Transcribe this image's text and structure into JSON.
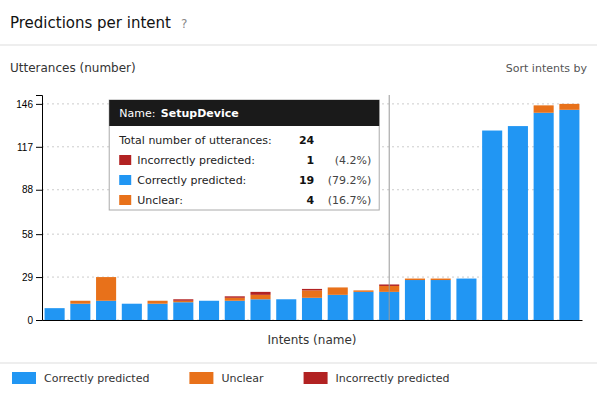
{
  "chart_data": {
    "type": "bar",
    "stacked": true,
    "title": "Predictions per intent",
    "subtitle": "?",
    "ylabel": "Utterances (number)",
    "xlabel": "Intents (name)",
    "categories": [
      null,
      null,
      null,
      null,
      null,
      null,
      null,
      null,
      null,
      null,
      null,
      null,
      null,
      null,
      null,
      null,
      null,
      null,
      null,
      null,
      null
    ],
    "series": [
      {
        "name": "Correctly predicted",
        "color": "#2196F3",
        "values": [
          8,
          11,
          13,
          11,
          11,
          12,
          13,
          13,
          14,
          14,
          15,
          17,
          19,
          19,
          27,
          27,
          28,
          128,
          131,
          140,
          142
        ]
      },
      {
        "name": "Unclear",
        "color": "#E8711A",
        "values": [
          0,
          2,
          16,
          0,
          2,
          1,
          0,
          2,
          3,
          0,
          5,
          5,
          1,
          4,
          1,
          1,
          0,
          0,
          0,
          5,
          4
        ]
      },
      {
        "name": "Incorrectly predicted",
        "color": "#B22222",
        "values": [
          0,
          0,
          0,
          0,
          0,
          1,
          0,
          1,
          2,
          0,
          1,
          0,
          0,
          1,
          0,
          0,
          0,
          0,
          0,
          0,
          0
        ]
      }
    ],
    "ylim": [
      0,
      152
    ],
    "yticks": [
      0,
      29,
      58,
      88,
      117,
      146
    ],
    "grid": true,
    "legend": "bottom",
    "tick_labels": "y",
    "annotations": [
      {
        "text": "Sort intents by"
      },
      {
        "x": 13,
        "title_label": "Name: ",
        "title": "SetupDevice",
        "total_label": "Total number of utterances:",
        "total": 24,
        "rows": [
          {
            "label": "Incorrectly predicted:",
            "value": 1,
            "share": "(4.2%)",
            "color": "#B22222"
          },
          {
            "label": "Correctly predicted:",
            "value": 19,
            "share": "(79.2%)",
            "color": "#2196F3"
          },
          {
            "label": "Unclear:",
            "value": 4,
            "share": "(16.7%)",
            "color": "#E8711A"
          }
        ]
      }
    ]
  }
}
